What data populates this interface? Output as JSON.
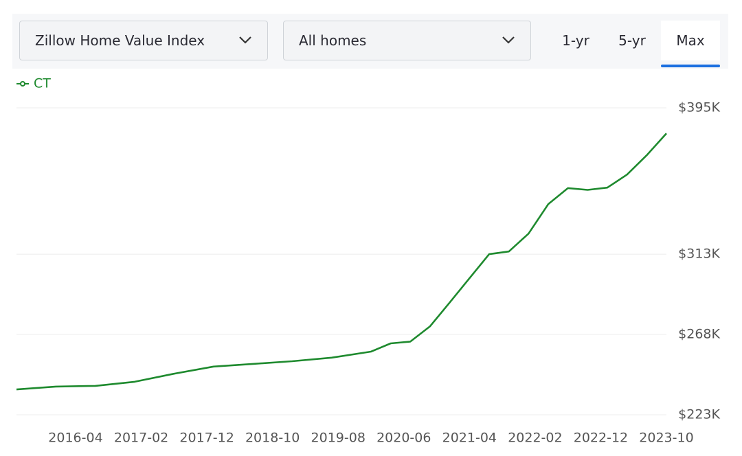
{
  "controls": {
    "dropdowns": [
      "Zillow Home Value Index",
      "All homes"
    ],
    "ranges": [
      "1-yr",
      "5-yr",
      "Max"
    ]
  },
  "chart_data": {
    "type": "line",
    "x": [
      "2015-07",
      "2016-01",
      "2016-07",
      "2017-01",
      "2017-07",
      "2018-01",
      "2018-07",
      "2019-01",
      "2019-07",
      "2020-01",
      "2020-04",
      "2020-07",
      "2020-10",
      "2021-01",
      "2021-04",
      "2021-07",
      "2021-10",
      "2022-01",
      "2022-04",
      "2022-07",
      "2022-10",
      "2023-01",
      "2023-04",
      "2023-07",
      "2023-10"
    ],
    "series": [
      {
        "name": "CT",
        "color": "#1e8a2e",
        "values": [
          237200,
          238800,
          239200,
          241500,
          246000,
          250000,
          251500,
          253000,
          255000,
          258400,
          263000,
          264000,
          272600,
          286000,
          299500,
          313000,
          314500,
          324500,
          341000,
          350000,
          349000,
          350300,
          357600,
          368400,
          380700
        ]
      }
    ],
    "xlim": [
      "2015-07",
      "2023-10"
    ],
    "xticks": [
      "2016-04",
      "2017-02",
      "2017-12",
      "2018-10",
      "2019-08",
      "2020-06",
      "2021-04",
      "2022-02",
      "2022-12",
      "2023-10"
    ],
    "ylim": [
      223000,
      395000
    ],
    "yticks": [
      {
        "value": 223000,
        "label": "$223K"
      },
      {
        "value": 268000,
        "label": "$268K"
      },
      {
        "value": 313000,
        "label": "$313K"
      },
      {
        "value": 395000,
        "label": "$395K"
      }
    ],
    "grid": true
  }
}
